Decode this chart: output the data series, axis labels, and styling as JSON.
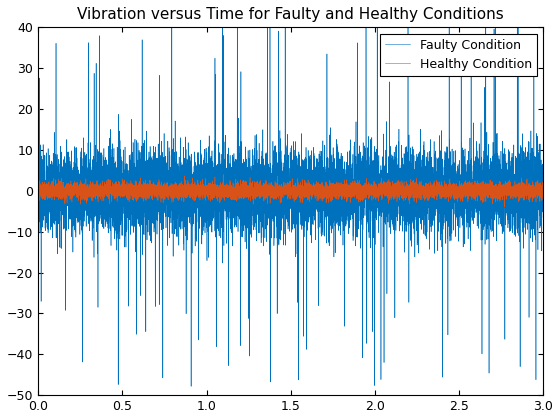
{
  "title": "Vibration versus Time for Faulty and Healthy Conditions",
  "xlim": [
    0,
    3
  ],
  "ylim": [
    -50,
    40
  ],
  "xticks": [
    0,
    0.5,
    1.0,
    1.5,
    2.0,
    2.5,
    3.0
  ],
  "yticks": [
    -50,
    -40,
    -30,
    -20,
    -10,
    0,
    10,
    20,
    30,
    40
  ],
  "faulty_color": "#0072BD",
  "healthy_color": "#D95319",
  "faulty_label": "Faulty Condition",
  "healthy_label": "Healthy Condition",
  "faulty_std": 5.0,
  "healthy_std": 1.0,
  "n_points": 10000,
  "duration": 3.0,
  "seed": 7,
  "linewidth_faulty": 0.4,
  "linewidth_healthy": 0.4,
  "figsize": [
    5.6,
    4.2
  ],
  "dpi": 100,
  "title_fontsize": 11,
  "legend_fontsize": 9,
  "tick_fontsize": 9
}
